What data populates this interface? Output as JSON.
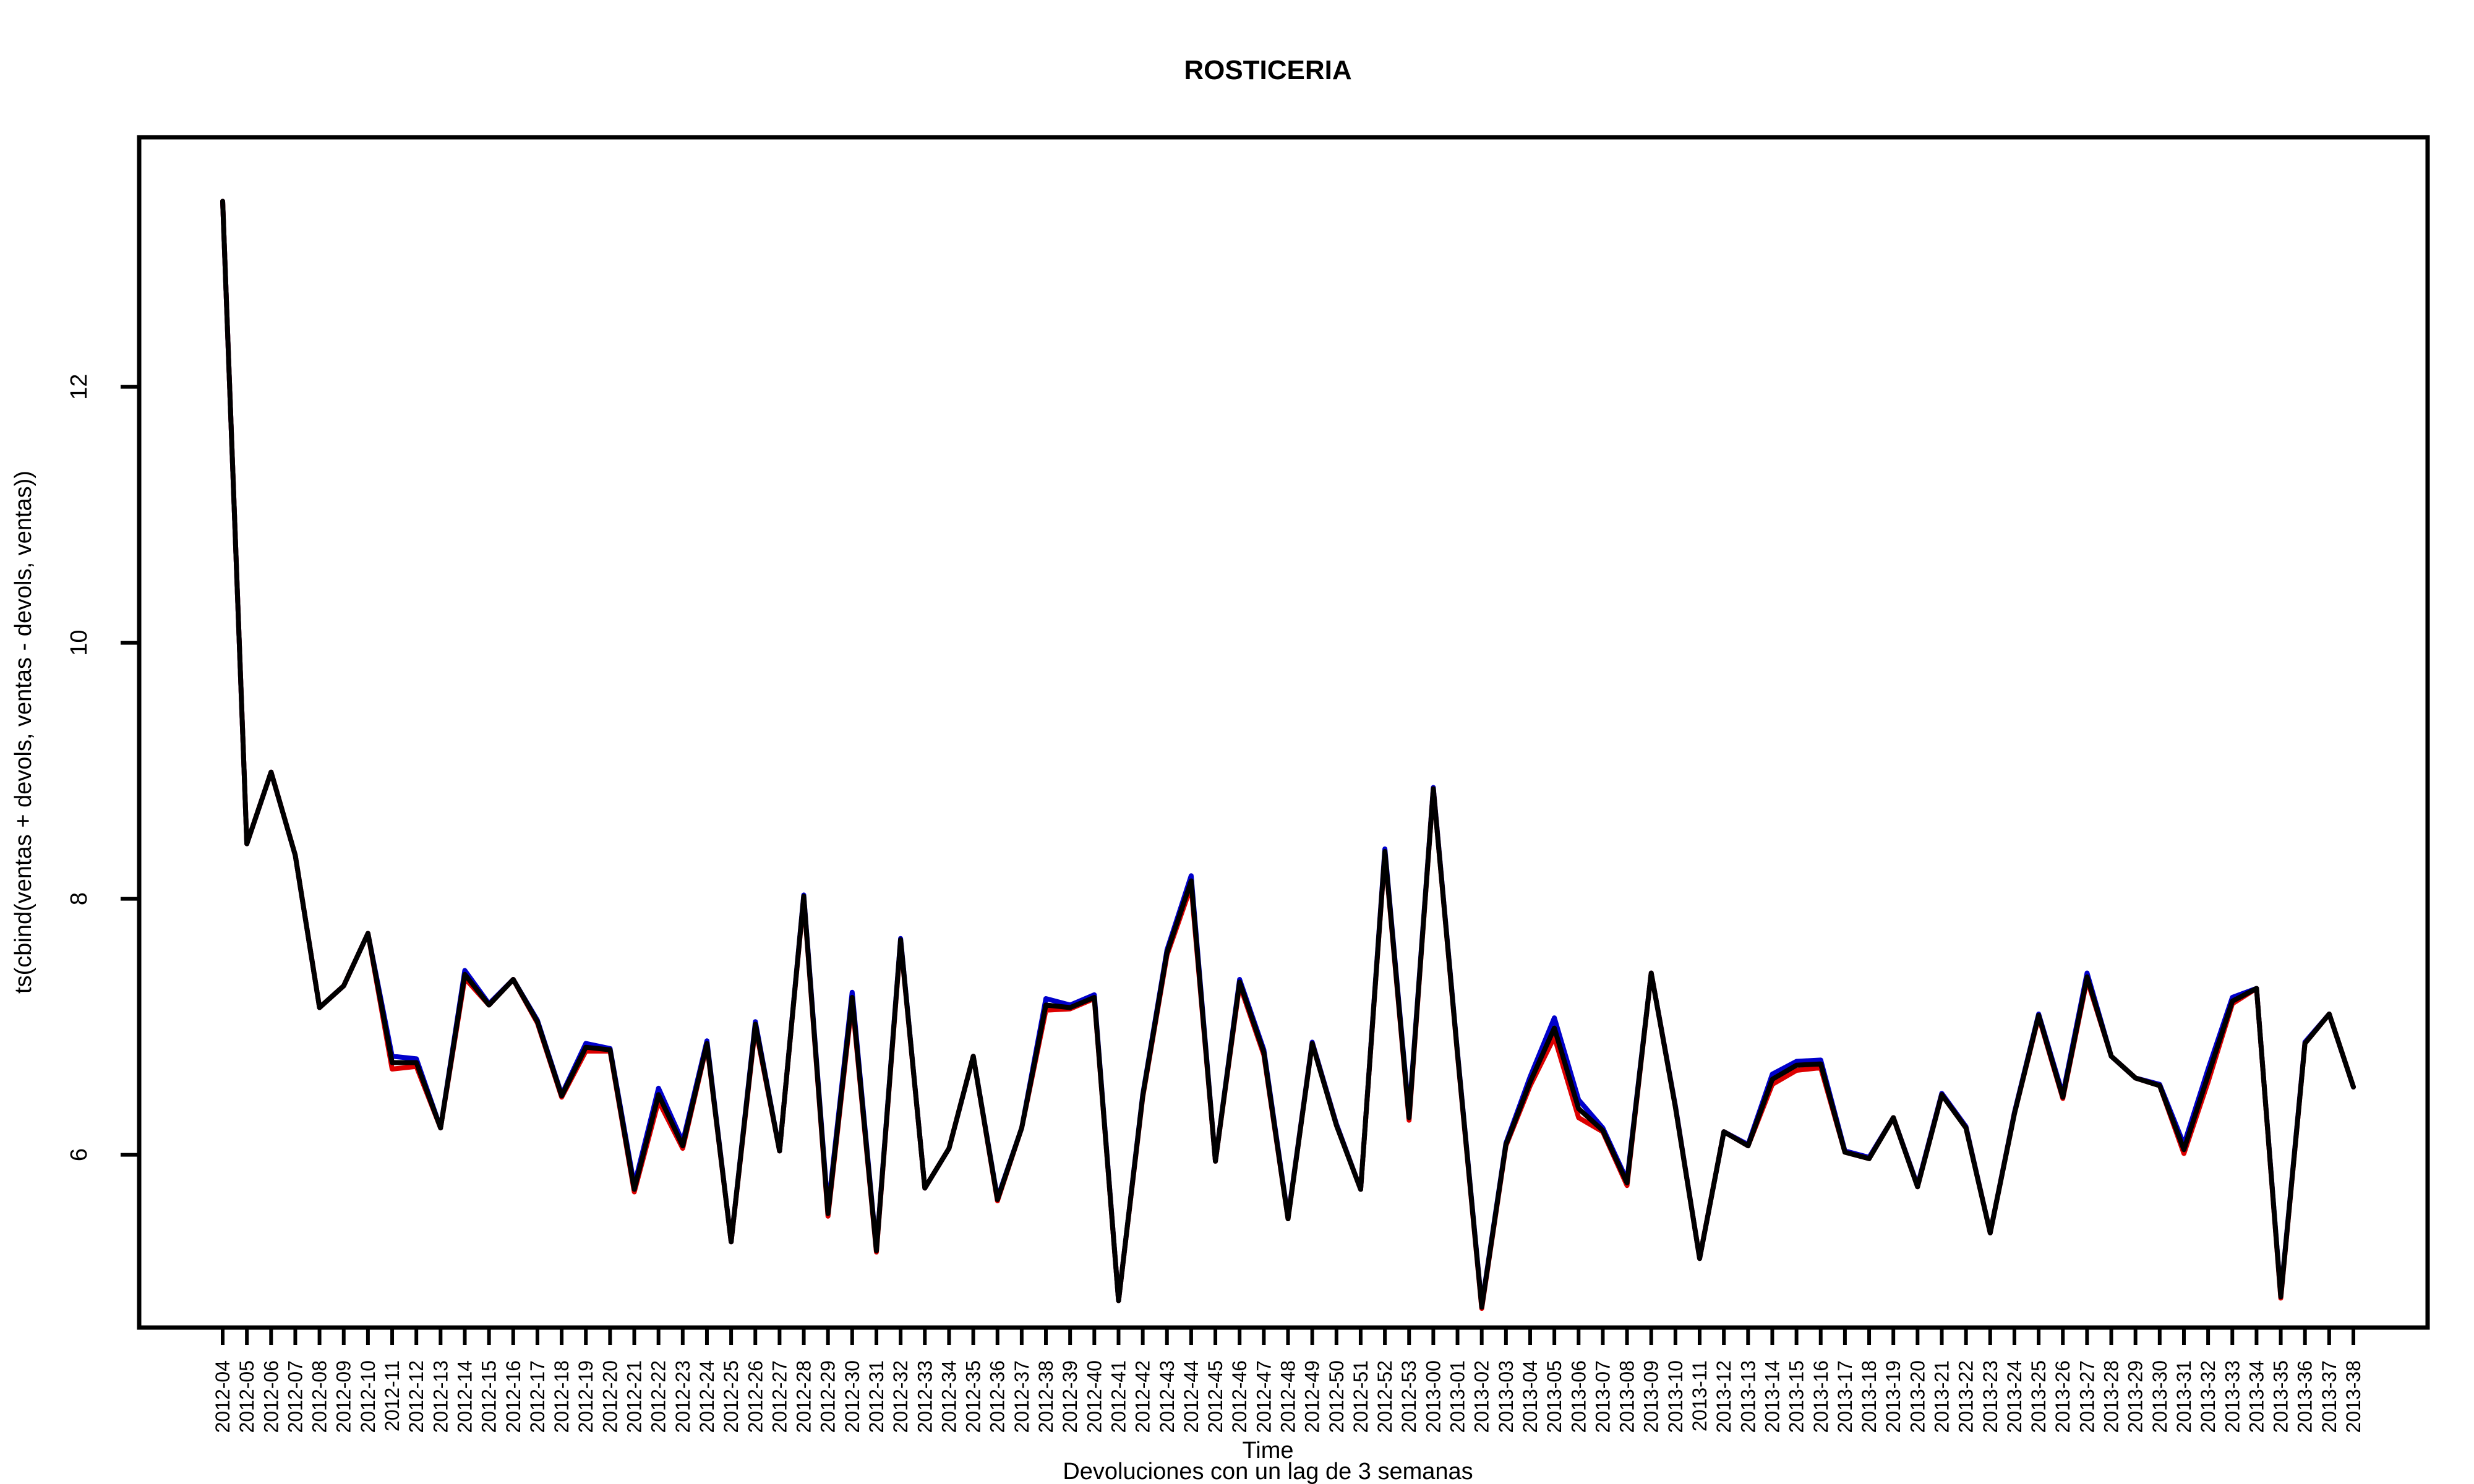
{
  "chart_data": {
    "type": "line",
    "title": "ROSTICERIA",
    "xlabel": "Time",
    "subtitle": "Devoluciones con un lag de 3 semanas",
    "ylabel": "ts(cbind(ventas + devols, ventas - devols, ventas))",
    "ylim": [
      4.65,
      13.95
    ],
    "yticks": [
      6,
      8,
      10,
      12
    ],
    "grid": false,
    "categories": [
      "2012-04",
      "2012-05",
      "2012-06",
      "2012-07",
      "2012-08",
      "2012-09",
      "2012-10",
      "2012-11",
      "2012-12",
      "2012-13",
      "2012-14",
      "2012-15",
      "2012-16",
      "2012-17",
      "2012-18",
      "2012-19",
      "2012-20",
      "2012-21",
      "2012-22",
      "2012-23",
      "2012-24",
      "2012-25",
      "2012-26",
      "2012-27",
      "2012-28",
      "2012-29",
      "2012-30",
      "2012-31",
      "2012-32",
      "2012-33",
      "2012-34",
      "2012-35",
      "2012-36",
      "2012-37",
      "2012-38",
      "2012-39",
      "2012-40",
      "2012-41",
      "2012-42",
      "2012-43",
      "2012-44",
      "2012-45",
      "2012-46",
      "2012-47",
      "2012-48",
      "2012-49",
      "2012-50",
      "2012-51",
      "2012-52",
      "2012-53",
      "2013-00",
      "2013-01",
      "2013-02",
      "2013-03",
      "2013-04",
      "2013-05",
      "2013-06",
      "2013-07",
      "2013-08",
      "2013-09",
      "2013-10",
      "2013-11",
      "2013-12",
      "2013-13",
      "2013-14",
      "2013-15",
      "2013-16",
      "2013-17",
      "2013-18",
      "2013-19",
      "2013-20",
      "2013-21",
      "2013-22",
      "2013-23",
      "2013-24",
      "2013-25",
      "2013-26",
      "2013-27",
      "2013-28",
      "2013-29",
      "2013-30",
      "2013-31",
      "2013-32",
      "2013-33",
      "2013-34",
      "2013-35",
      "2013-36",
      "2013-37",
      "2013-38"
    ],
    "series": [
      {
        "color": "#0000cc",
        "values": [
          13.45,
          8.43,
          8.99,
          8.34,
          7.15,
          7.32,
          7.73,
          6.77,
          6.75,
          6.21,
          7.44,
          7.18,
          7.37,
          7.05,
          6.47,
          6.87,
          6.83,
          5.76,
          6.52,
          6.1,
          6.89,
          5.32,
          7.04,
          6.03,
          8.03,
          5.57,
          7.27,
          5.26,
          7.69,
          5.74,
          6.05,
          6.77,
          5.66,
          6.21,
          7.22,
          7.17,
          7.25,
          4.86,
          6.47,
          7.6,
          8.18,
          5.95,
          7.37,
          6.82,
          5.51,
          6.88,
          6.24,
          5.73,
          8.39,
          6.31,
          8.87,
          6.8,
          4.82,
          6.09,
          6.61,
          7.07,
          6.43,
          6.21,
          5.8,
          7.42,
          6.38,
          5.19,
          6.18,
          6.08,
          6.63,
          6.73,
          6.74,
          6.03,
          5.98,
          6.29,
          5.76,
          6.48,
          6.22,
          5.39,
          6.33,
          7.1,
          6.47,
          7.42,
          6.77,
          6.6,
          6.55,
          6.08,
          6.67,
          7.23,
          7.3,
          4.9,
          6.88,
          7.1,
          6.53
        ]
      },
      {
        "color": "#dd0000",
        "values": [
          13.45,
          8.43,
          8.99,
          8.34,
          7.15,
          7.32,
          7.73,
          6.67,
          6.69,
          6.21,
          7.38,
          7.17,
          7.37,
          7.03,
          6.45,
          6.81,
          6.81,
          5.71,
          6.42,
          6.05,
          6.86,
          5.32,
          7.0,
          6.03,
          8.01,
          5.52,
          7.2,
          5.24,
          7.67,
          5.74,
          6.05,
          6.77,
          5.64,
          6.21,
          7.13,
          7.14,
          7.22,
          4.86,
          6.45,
          7.56,
          8.1,
          5.95,
          7.33,
          6.78,
          5.5,
          6.87,
          6.23,
          5.73,
          8.36,
          6.27,
          8.86,
          6.78,
          4.8,
          6.07,
          6.54,
          6.92,
          6.29,
          6.18,
          5.76,
          7.42,
          6.37,
          5.19,
          6.18,
          6.07,
          6.55,
          6.66,
          6.68,
          6.02,
          5.97,
          6.29,
          5.75,
          6.47,
          6.21,
          5.39,
          6.32,
          7.08,
          6.44,
          7.37,
          6.77,
          6.6,
          6.54,
          6.01,
          6.57,
          7.18,
          7.3,
          4.88,
          6.87,
          7.1,
          6.53
        ]
      },
      {
        "color": "#000000",
        "values": [
          13.45,
          8.43,
          8.99,
          8.34,
          7.15,
          7.32,
          7.73,
          6.72,
          6.72,
          6.21,
          7.41,
          7.17,
          7.37,
          7.04,
          6.46,
          6.84,
          6.82,
          5.73,
          6.47,
          6.07,
          6.87,
          5.32,
          7.02,
          6.03,
          8.02,
          5.54,
          7.23,
          5.25,
          7.68,
          5.74,
          6.05,
          6.77,
          5.65,
          6.21,
          7.17,
          7.15,
          7.23,
          4.86,
          6.46,
          7.58,
          8.14,
          5.95,
          7.35,
          6.8,
          5.5,
          6.87,
          6.23,
          5.73,
          8.37,
          6.29,
          8.86,
          6.79,
          4.81,
          6.08,
          6.57,
          6.99,
          6.36,
          6.19,
          5.78,
          7.42,
          6.37,
          5.19,
          6.18,
          6.07,
          6.59,
          6.7,
          6.71,
          6.02,
          5.97,
          6.29,
          5.75,
          6.47,
          6.21,
          5.39,
          6.32,
          7.09,
          6.45,
          7.39,
          6.77,
          6.6,
          6.54,
          6.04,
          6.62,
          7.2,
          7.3,
          4.89,
          6.87,
          7.1,
          6.53
        ]
      }
    ]
  }
}
